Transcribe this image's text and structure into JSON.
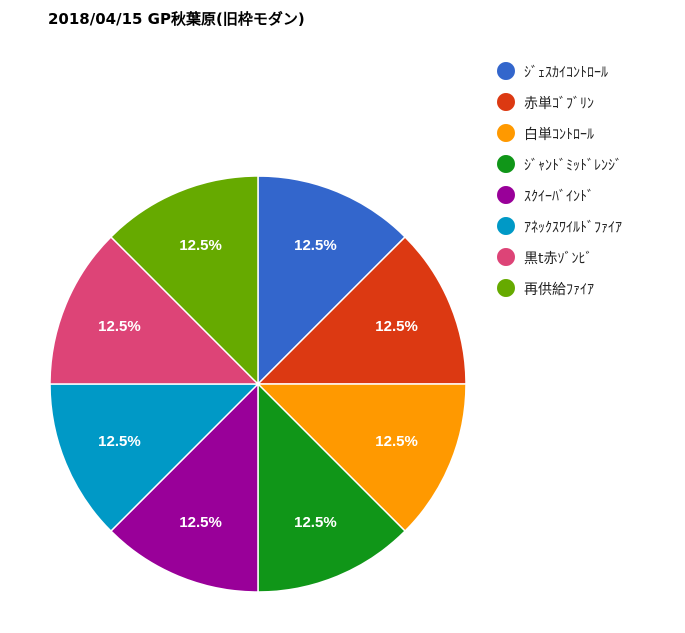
{
  "chart_data": {
    "type": "pie",
    "title": "2018/04/15 GP秋葉原(旧枠モダン)",
    "legend_position": "right",
    "slices": [
      {
        "label": "ｼﾞｪｽｶｲｺﾝﾄﾛｰﾙ",
        "value": 12.5,
        "display": "12.5%",
        "color": "#3366cc"
      },
      {
        "label": "赤単ｺﾞﾌﾞﾘﾝ",
        "value": 12.5,
        "display": "12.5%",
        "color": "#dc3912"
      },
      {
        "label": "白単ｺﾝﾄﾛｰﾙ",
        "value": 12.5,
        "display": "12.5%",
        "color": "#ff9900"
      },
      {
        "label": "ｼﾞｬﾝﾄﾞﾐｯﾄﾞﾚﾝｼﾞ",
        "value": 12.5,
        "display": "12.5%",
        "color": "#109618"
      },
      {
        "label": "ｽｸｲｰﾊﾞｲﾝﾄﾞ",
        "value": 12.5,
        "display": "12.5%",
        "color": "#990099"
      },
      {
        "label": "ｱﾈｯｸｽﾜｲﾙﾄﾞﾌｧｲｱ",
        "value": 12.5,
        "display": "12.5%",
        "color": "#0099c6"
      },
      {
        "label": "黒t赤ｿﾞﾝﾋﾞ",
        "value": 12.5,
        "display": "12.5%",
        "color": "#dd4477"
      },
      {
        "label": "再供給ﾌｧｲｱ",
        "value": 12.5,
        "display": "12.5%",
        "color": "#66aa00"
      }
    ]
  }
}
